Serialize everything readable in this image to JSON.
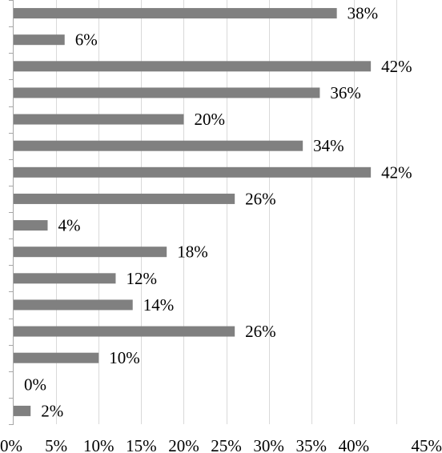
{
  "chart_data": {
    "type": "bar",
    "orientation": "horizontal",
    "values": [
      38,
      6,
      42,
      36,
      20,
      34,
      42,
      26,
      4,
      18,
      12,
      14,
      26,
      10,
      0,
      2
    ],
    "value_labels": [
      "38%",
      "6%",
      "42%",
      "36%",
      "20%",
      "34%",
      "42%",
      "26%",
      "4%",
      "18%",
      "12%",
      "14%",
      "26%",
      "10%",
      "0%",
      "2%"
    ],
    "xlim": [
      0,
      45
    ],
    "x_ticks": [
      0,
      5,
      10,
      15,
      20,
      25,
      30,
      35,
      40,
      45
    ],
    "x_tick_labels": [
      "0%",
      "5%",
      "10%",
      "15%",
      "20%",
      "25%",
      "30%",
      "35%",
      "40%",
      "45%"
    ],
    "grid": "vertical",
    "bar_color": "#808080",
    "title": "",
    "xlabel": "",
    "ylabel": ""
  }
}
